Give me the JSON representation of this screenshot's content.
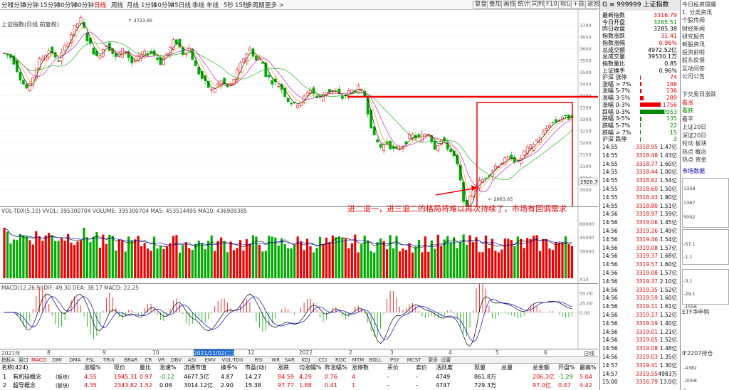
{
  "toolbar": {
    "periods": [
      "分时",
      "1分钟",
      "5分钟",
      "15分钟",
      "30分钟",
      "60分钟",
      "日线",
      "周线",
      "月线",
      "1分钟",
      "10分钟",
      "45日线",
      "季线",
      "年线",
      "5秒",
      "15秒",
      "多周期",
      "更多 >"
    ],
    "active_period": "日线",
    "buttons": [
      "复盘",
      "叠加",
      "画线",
      "统计",
      "同列",
      "F10",
      "标记",
      "+自选",
      "返回"
    ]
  },
  "chart": {
    "title": "上证指数(日线 前复权)",
    "high_label": "3723.85",
    "low_label": "2863.65",
    "current_price": "2920.7",
    "annotation": "进二退一，进三退二的格局将难以再次持续了，市场有回调需求",
    "price_axis": [
      "3700",
      "3650",
      "3600",
      "3550",
      "3500",
      "3450",
      "3400",
      "3350",
      "3300",
      "3250",
      "3200",
      "3150",
      "3100",
      "3050",
      "3000"
    ],
    "volume_label": "VOL-TDX(5,10) VVOL: 395300704 VOLUME: 395300704 MA5: 453514495 MA10: 436909385",
    "volume_axis": [
      "60000",
      "45000",
      "30000"
    ],
    "volume_unit": "X10",
    "macd_label": "MACD(12,26,9) DIF: 49.30 DEA: 38.17 MACD: 22.25",
    "macd_axis": [
      "50.00",
      "25.00",
      "0.00"
    ],
    "date_axis": [
      "2021年",
      "8",
      "9",
      "10",
      "2021/11/02(二)",
      "12",
      "2022",
      "2",
      "3",
      "4",
      "5",
      "6"
    ],
    "date_axis_end": "日线"
  },
  "indicator_tabs": [
    "指标A",
    "窗口",
    "MACD",
    "DMI",
    "DMA",
    "FSL",
    "TRIX",
    "BRAR",
    "CR",
    "VR",
    "OBV",
    "ASI",
    "EMV",
    "VOL-TDX",
    "RSI",
    "WR",
    "SAR",
    "KDJ",
    "CCI",
    "ROC",
    "MTM",
    "BOLL",
    "PSY",
    "MCST",
    "更多",
    "设置"
  ],
  "active_tab": "MACD",
  "block_table": {
    "headers": [
      "名称(424)",
      "涨幅%",
      "现价",
      "量比",
      "涨速%",
      "流通市值",
      "换手%",
      "市盈(动)",
      "涨跌",
      "均涨幅%",
      "昨涨幅%",
      "涨停数",
      "买价",
      "卖价",
      "活跃度",
      "现量",
      "总量",
      "总金额",
      "开盘%",
      "最高%"
    ],
    "rows": [
      {
        "idx": "1",
        "name": "有机硅概念",
        "tag": "(板块)",
        "change": "4.55",
        "price": "1945.31",
        "vol_ratio": "0.97",
        "speed": "-0.12",
        "mktcap": "4677.5亿",
        "turnover": "4.87",
        "pe": "14.27",
        "diff": "84.59",
        "avg_change": "4.29",
        "prev_change": "0.76",
        "limit_up": "4",
        "bid": "-",
        "ask": "-",
        "activity": "4749",
        "cur_vol": "861.8万",
        "total_vol": "",
        "amount": "206.3亿",
        "open": "-1.29",
        "high": "5.04"
      },
      {
        "idx": "2",
        "name": "超导概念",
        "tag": "(板块)",
        "change": "4.35",
        "price": "2343.82",
        "vol_ratio": "1.52",
        "speed": "0.08",
        "mktcap": "3014.12亿",
        "turnover": "2.90",
        "pe": "15.38",
        "diff": "97.77",
        "avg_change": "1.88",
        "prev_change": "0.41",
        "limit_up": "1",
        "bid": "-",
        "ask": "-",
        "activity": "4747",
        "cur_vol": "729.3万",
        "total_vol": "",
        "amount": "97.0亿",
        "open": "0.47",
        "high": "4.42"
      }
    ]
  },
  "quote": {
    "header": "G ≡ 999999 上证指数",
    "stats": [
      {
        "label": "最新指数",
        "value": "3316.79",
        "color": "#e00"
      },
      {
        "label": "今日开盘",
        "value": "3265.51",
        "color": "#080"
      },
      {
        "label": "昨日收盘",
        "value": "3285.38",
        "color": "#000"
      },
      {
        "label": "指数涨跌",
        "value": "31.41",
        "color": "#e00"
      },
      {
        "label": "指数涨幅",
        "value": "0.96%",
        "color": "#e00"
      },
      {
        "label": "总成交额",
        "value": "4972.52亿",
        "color": "#000"
      },
      {
        "label": "总成交量",
        "value": "39530.1万",
        "color": "#000"
      },
      {
        "label": "指数量比",
        "value": "0.85",
        "color": "#000"
      },
      {
        "label": "上证换手",
        "value": "0.96%",
        "color": "#000"
      }
    ],
    "distribution": [
      {
        "label": "沪深 涨停",
        "value": "74",
        "color": "#e00",
        "bar": 0.03
      },
      {
        "label": "涨幅 > 7%",
        "value": "146",
        "color": "#e00",
        "bar": 0.05
      },
      {
        "label": "涨幅 5-7%",
        "value": "136",
        "color": "#e00",
        "bar": 0.05
      },
      {
        "label": "涨幅 3-5%",
        "value": "289",
        "color": "#e00",
        "bar": 0.1
      },
      {
        "label": "涨幅 0-3%",
        "value": "1756",
        "color": "#e00",
        "bar": 0.6
      },
      {
        "label": "跌幅 0-3%",
        "value": "2053",
        "color": "#080",
        "bar": 0.7
      },
      {
        "label": "跌幅 3-5%",
        "value": "135",
        "color": "#080",
        "bar": 0.04
      },
      {
        "label": "跌幅 5-7%",
        "value": "22",
        "color": "#080",
        "bar": 0.01
      },
      {
        "label": "跌幅 > 7%",
        "value": "15",
        "color": "#080",
        "bar": 0.01
      },
      {
        "label": "沪深 跌停",
        "value": "3",
        "color": "#080",
        "bar": 0.005
      }
    ],
    "ticks": [
      {
        "t": "14:55",
        "p": "3318.95",
        "v": "1.47亿"
      },
      {
        "t": "14:55",
        "p": "3318.48",
        "v": "1.43亿"
      },
      {
        "t": "14:55",
        "p": "3318.77",
        "v": "1.60亿"
      },
      {
        "t": "14:55",
        "p": "3318.44",
        "v": "1.00亿"
      },
      {
        "t": "14:55",
        "p": "3318.62",
        "v": "1.54亿"
      },
      {
        "t": "14:55",
        "p": "3318.60",
        "v": "1.50亿"
      },
      {
        "t": "14:55",
        "p": "3318.43",
        "v": "1.80亿"
      },
      {
        "t": "14:55",
        "p": "3318.80",
        "v": "1.51亿"
      },
      {
        "t": "14:56",
        "p": "3318.97",
        "v": "1.59亿"
      },
      {
        "t": "14:56",
        "p": "3319.06",
        "v": "1.45亿"
      },
      {
        "t": "14:56",
        "p": "3319.26",
        "v": "1.49亿"
      },
      {
        "t": "14:56",
        "p": "3319.46",
        "v": "1.54亿"
      },
      {
        "t": "14:56",
        "p": "3319.08",
        "v": "1.57亿"
      },
      {
        "t": "14:56",
        "p": "3319.37",
        "v": "1.68亿"
      },
      {
        "t": "14:56",
        "p": "3319.57",
        "v": "1.60亿"
      },
      {
        "t": "14:56",
        "p": "3319.08",
        "v": "1.57亿"
      },
      {
        "t": "14:56",
        "p": "3319.37",
        "v": "2.10亿"
      },
      {
        "t": "14:56",
        "p": "3319.35",
        "v": "1.52亿"
      },
      {
        "t": "14:56",
        "p": "3319.59",
        "v": "1.60亿"
      },
      {
        "t": "14:56",
        "p": "3319.11",
        "v": "1.61亿"
      },
      {
        "t": "14:56",
        "p": "3319.17",
        "v": "1.52亿"
      },
      {
        "t": "14:56",
        "p": "3319.19",
        "v": "1.40亿"
      },
      {
        "t": "14:56",
        "p": "3319.01",
        "v": "1.21亿"
      },
      {
        "t": "14:56",
        "p": "3319.05",
        "v": "1.52亿"
      },
      {
        "t": "14:56",
        "p": "3319.08",
        "v": "1.48亿"
      },
      {
        "t": "14:56",
        "p": "3319.03",
        "v": "1.35亿"
      },
      {
        "t": "14:57",
        "p": "3319.41",
        "v": "1.30亿"
      },
      {
        "t": "14:57",
        "p": "3319.55",
        "v": "4983万"
      },
      {
        "t": "15:00",
        "p": "3316.79",
        "v": "13.0亿"
      }
    ]
  },
  "sidebar": {
    "items": [
      "今日投资提醒",
      "1. 分类资讯",
      "个股传闻",
      "财经新闻",
      "研究报告",
      "新股资讯",
      "投资前哨",
      "股东反馈",
      "互动问答",
      "公司公告"
    ],
    "sections": [
      "下交易日涨跌",
      "看涨",
      "看跌",
      "看平",
      "上证20日",
      "深证20日",
      "轮动 板块",
      "热点 概念",
      "热点 资金"
    ],
    "market_label": "市场数据",
    "mini_values": [
      "1358",
      "1367",
      "5002",
      "-57.1",
      "-1.1",
      "-3.1",
      "-29.1",
      "-1556",
      "-4382",
      "-2058",
      "0"
    ],
    "etf_label": "ETF净申购",
    "if_label": "IF2207持仓",
    "lt_values": [
      "17.7",
      "22.2",
      "42.4",
      "1.7",
      "6.5",
      "8.3",
      "0"
    ]
  },
  "chart_data": {
    "type": "candlestick",
    "title": "上证指数(日线 前复权)",
    "high": 3723.85,
    "low": 2863.65,
    "ylim": [
      2950,
      3750
    ],
    "series": [
      {
        "name": "MA5",
        "color": "#000"
      },
      {
        "name": "MA10",
        "color": "#d4a000"
      },
      {
        "name": "MA20",
        "color": "#c000c0"
      },
      {
        "name": "MA60",
        "color": "#0a0"
      }
    ]
  }
}
